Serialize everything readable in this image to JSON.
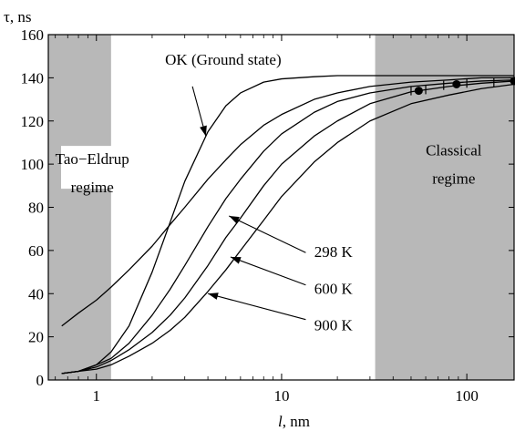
{
  "chart_data": {
    "type": "line",
    "title": "",
    "xlabel_italic": "l",
    "xlabel_unit": ", nm",
    "ylabel": "τ, ns",
    "xscale": "log",
    "xlim": [
      0.55,
      180
    ],
    "ylim": [
      0,
      160
    ],
    "x_ticks": [
      1,
      10,
      100
    ],
    "x_tick_labels": [
      "1",
      "10",
      "100"
    ],
    "y_ticks": [
      0,
      20,
      40,
      60,
      80,
      100,
      120,
      140,
      160
    ],
    "y_tick_labels": [
      "0",
      "20",
      "40",
      "60",
      "80",
      "100",
      "120",
      "140",
      "160"
    ],
    "grid": false,
    "shaded_regions": [
      {
        "x_range": [
          0.55,
          1.2
        ],
        "color": "#b8b8b8"
      },
      {
        "x_range": [
          32,
          180
        ],
        "color": "#b8b8b8"
      }
    ],
    "region_labels": [
      {
        "lines": [
          "Tao−Eldrup",
          "regime"
        ],
        "x": 0.95,
        "y": [
          100,
          87
        ]
      },
      {
        "lines": [
          "Classical",
          "regime"
        ],
        "x": 85,
        "y": [
          104,
          91
        ]
      }
    ],
    "series": [
      {
        "x": [
          0.65,
          0.8,
          1.0,
          1.2,
          1.5,
          2.0,
          2.5,
          3.0,
          4.0,
          5.0,
          6.0,
          8.0,
          10,
          15,
          20,
          30,
          50,
          80,
          120,
          180
        ],
        "y": [
          25,
          31,
          37,
          43,
          51,
          62,
          72,
          80,
          93,
          102,
          109,
          118,
          123,
          130,
          133,
          136,
          138,
          139,
          140,
          140
        ]
      },
      {
        "name": "OK (Ground state)",
        "x": [
          0.65,
          0.8,
          1.0,
          1.2,
          1.5,
          2.0,
          2.5,
          3.0,
          4.0,
          5.0,
          6.0,
          8.0,
          10,
          15,
          20,
          30,
          50,
          80,
          120,
          180
        ],
        "y": [
          3,
          4,
          7,
          13,
          25,
          50,
          73,
          92,
          115,
          127,
          133,
          138,
          139.5,
          140.5,
          141,
          141,
          141,
          141,
          141,
          141
        ]
      },
      {
        "name": "298 K",
        "x": [
          0.65,
          0.8,
          1.0,
          1.2,
          1.5,
          2.0,
          2.5,
          3.0,
          4.0,
          5.0,
          6.0,
          8.0,
          10,
          15,
          20,
          30,
          50,
          80,
          120,
          180
        ],
        "y": [
          3,
          4,
          7,
          10,
          17,
          30,
          42,
          53,
          71,
          84,
          93,
          106,
          114,
          124,
          129,
          133,
          136,
          137.5,
          138.5,
          139
        ]
      },
      {
        "name": "600 K",
        "x": [
          0.65,
          0.8,
          1.0,
          1.2,
          1.5,
          2.0,
          2.5,
          3.0,
          4.0,
          5.0,
          6.0,
          8.0,
          10,
          15,
          20,
          30,
          50,
          80,
          120,
          180
        ],
        "y": [
          3,
          4,
          6,
          9,
          14,
          22,
          30,
          38,
          53,
          66,
          75,
          90,
          100,
          113,
          120,
          128,
          133.5,
          136,
          137.5,
          138.5
        ]
      },
      {
        "name": "900 K",
        "x": [
          0.65,
          0.8,
          1.0,
          1.2,
          1.5,
          2.0,
          2.5,
          3.0,
          4.0,
          5.0,
          6.0,
          8.0,
          10,
          15,
          20,
          30,
          50,
          80,
          120,
          180
        ],
        "y": [
          3,
          4,
          5,
          7,
          11,
          17,
          23,
          29,
          41,
          51,
          60,
          74,
          85,
          101,
          110,
          120,
          128,
          132,
          135,
          137
        ]
      }
    ],
    "markers": [
      {
        "x": 55,
        "y": 134
      },
      {
        "x": 88,
        "y": 137
      },
      {
        "x": 180,
        "y": 138.5
      }
    ],
    "tick_marks": [
      {
        "x": 50,
        "y": 134
      },
      {
        "x": 60,
        "y": 134.5
      },
      {
        "x": 75,
        "y": 136.5
      },
      {
        "x": 100,
        "y": 137.5
      },
      {
        "x": 140,
        "y": 138
      }
    ],
    "annotations": [
      {
        "text": "OK (Ground state)",
        "tx": 2.35,
        "ty": 146,
        "ax": 3.3,
        "ay": 136,
        "hx": 3.9,
        "hy": 113
      },
      {
        "text": "298 K",
        "tx": 15,
        "ty": 57,
        "ax": 13.5,
        "ay": 59,
        "hx": 5.2,
        "hy": 76
      },
      {
        "text": "600 K",
        "tx": 15,
        "ty": 40,
        "ax": 13.5,
        "ay": 44,
        "hx": 5.3,
        "hy": 57
      },
      {
        "text": "900 K",
        "tx": 15,
        "ty": 23,
        "ax": 13.5,
        "ay": 28,
        "hx": 4.0,
        "hy": 40
      }
    ]
  }
}
